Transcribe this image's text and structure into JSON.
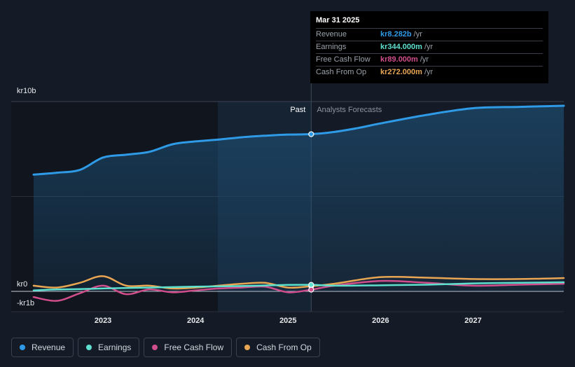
{
  "chart_data": {
    "type": "line",
    "y_labels": [
      "kr10b",
      "kr0",
      "-kr1b"
    ],
    "ylim": [
      -1,
      10
    ],
    "x_ticks": [
      "2023",
      "2024",
      "2025",
      "2026",
      "2027"
    ],
    "x_tick_values": [
      2023,
      2024,
      2025,
      2026,
      2027
    ],
    "xlim": [
      2022.25,
      2027.98
    ],
    "past_label": "Past",
    "forecast_label": "Analysts Forecasts",
    "divider_x": 2025.25,
    "series": [
      {
        "name": "Revenue",
        "color": "#2f9ae6",
        "points": [
          [
            2022.25,
            6.15
          ],
          [
            2022.5,
            6.25
          ],
          [
            2022.75,
            6.4
          ],
          [
            2023.0,
            7.05
          ],
          [
            2023.25,
            7.2
          ],
          [
            2023.5,
            7.35
          ],
          [
            2023.75,
            7.75
          ],
          [
            2024.0,
            7.9
          ],
          [
            2024.25,
            8.0
          ],
          [
            2024.5,
            8.12
          ],
          [
            2024.75,
            8.2
          ],
          [
            2025.0,
            8.26
          ],
          [
            2025.25,
            8.282
          ],
          [
            2025.5,
            8.4
          ],
          [
            2025.75,
            8.6
          ],
          [
            2026.0,
            8.85
          ],
          [
            2026.5,
            9.3
          ],
          [
            2027.0,
            9.65
          ],
          [
            2027.5,
            9.72
          ],
          [
            2027.98,
            9.78
          ]
        ]
      },
      {
        "name": "Earnings",
        "color": "#5ee0cf",
        "points": [
          [
            2022.25,
            0.05
          ],
          [
            2022.5,
            0.1
          ],
          [
            2022.75,
            0.12
          ],
          [
            2023.0,
            0.15
          ],
          [
            2023.5,
            0.2
          ],
          [
            2024.0,
            0.25
          ],
          [
            2024.5,
            0.28
          ],
          [
            2025.0,
            0.34
          ],
          [
            2025.25,
            0.344
          ],
          [
            2025.5,
            0.3
          ],
          [
            2026.0,
            0.32
          ],
          [
            2026.5,
            0.35
          ],
          [
            2027.0,
            0.42
          ],
          [
            2027.5,
            0.45
          ],
          [
            2027.98,
            0.48
          ]
        ]
      },
      {
        "name": "Free Cash Flow",
        "color": "#d14e8c",
        "points": [
          [
            2022.25,
            -0.3
          ],
          [
            2022.5,
            -0.5
          ],
          [
            2022.75,
            -0.1
          ],
          [
            2023.0,
            0.3
          ],
          [
            2023.25,
            -0.15
          ],
          [
            2023.5,
            0.1
          ],
          [
            2023.75,
            -0.05
          ],
          [
            2024.0,
            0.05
          ],
          [
            2024.25,
            0.15
          ],
          [
            2024.5,
            0.2
          ],
          [
            2024.75,
            0.25
          ],
          [
            2025.0,
            -0.05
          ],
          [
            2025.25,
            0.089
          ],
          [
            2025.5,
            0.3
          ],
          [
            2026.0,
            0.55
          ],
          [
            2026.5,
            0.45
          ],
          [
            2027.0,
            0.3
          ],
          [
            2027.5,
            0.35
          ],
          [
            2027.98,
            0.4
          ]
        ]
      },
      {
        "name": "Cash From Op",
        "color": "#e8a653",
        "points": [
          [
            2022.25,
            0.3
          ],
          [
            2022.5,
            0.2
          ],
          [
            2022.75,
            0.45
          ],
          [
            2023.0,
            0.8
          ],
          [
            2023.25,
            0.3
          ],
          [
            2023.5,
            0.3
          ],
          [
            2023.75,
            0.15
          ],
          [
            2024.0,
            0.2
          ],
          [
            2024.25,
            0.3
          ],
          [
            2024.5,
            0.4
          ],
          [
            2024.75,
            0.45
          ],
          [
            2025.0,
            0.2
          ],
          [
            2025.25,
            0.272
          ],
          [
            2025.5,
            0.4
          ],
          [
            2026.0,
            0.75
          ],
          [
            2026.5,
            0.72
          ],
          [
            2027.0,
            0.65
          ],
          [
            2027.5,
            0.65
          ],
          [
            2027.98,
            0.7
          ]
        ]
      }
    ]
  },
  "tooltip": {
    "date": "Mar 31 2025",
    "rows": [
      {
        "label": "Revenue",
        "value": "kr8.282b",
        "unit": "/yr",
        "color": "#2f9ae6"
      },
      {
        "label": "Earnings",
        "value": "kr344.000m",
        "unit": "/yr",
        "color": "#5ee0cf"
      },
      {
        "label": "Free Cash Flow",
        "value": "kr89.000m",
        "unit": "/yr",
        "color": "#d14e8c"
      },
      {
        "label": "Cash From Op",
        "value": "kr272.000m",
        "unit": "/yr",
        "color": "#e8a653"
      }
    ]
  },
  "legend": [
    {
      "label": "Revenue",
      "color": "#2f9ae6"
    },
    {
      "label": "Earnings",
      "color": "#5ee0cf"
    },
    {
      "label": "Free Cash Flow",
      "color": "#d14e8c"
    },
    {
      "label": "Cash From Op",
      "color": "#e8a653"
    }
  ]
}
